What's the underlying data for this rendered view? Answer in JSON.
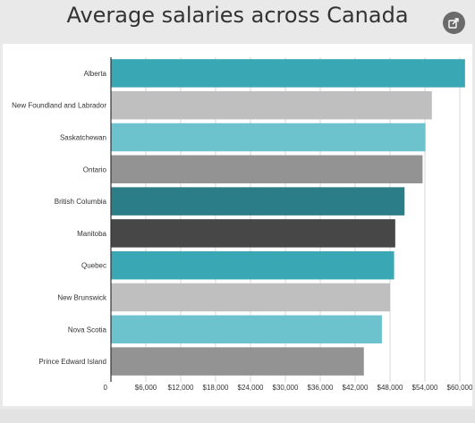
{
  "title": "Average salaries across Canada",
  "share": {
    "icon": "share-icon"
  },
  "chart_data": {
    "type": "bar",
    "orientation": "horizontal",
    "title": "Average salaries across Canada",
    "xlabel": "",
    "ylabel": "",
    "xlim": [
      0,
      60000
    ],
    "grid": true,
    "legend": "none",
    "categories": [
      "Alberta",
      "New Foundland and Labrador",
      "Saskatchewan",
      "Ontario",
      "British Columbia",
      "Manitoba",
      "Quebec",
      "New Brunswick",
      "Nova Scotia",
      "Prince Edward Island"
    ],
    "values": [
      60900,
      55200,
      54100,
      53600,
      50500,
      48900,
      48700,
      48000,
      46600,
      43500
    ],
    "colors": [
      "#3aa7b5",
      "#bfbfbf",
      "#6cc2cd",
      "#939393",
      "#2b7d87",
      "#474747",
      "#3aa7b5",
      "#bfbfbf",
      "#6cc2cd",
      "#939393"
    ],
    "ticks": [
      0,
      6000,
      12000,
      18000,
      24000,
      30000,
      36000,
      42000,
      48000,
      54000,
      60000
    ],
    "tick_labels": [
      "0",
      "$6,000",
      "$12,000",
      "$18,000",
      "$24,000",
      "$30,000",
      "$36,000",
      "$42,000",
      "$48,000",
      "$54,000",
      "$60,000"
    ]
  }
}
